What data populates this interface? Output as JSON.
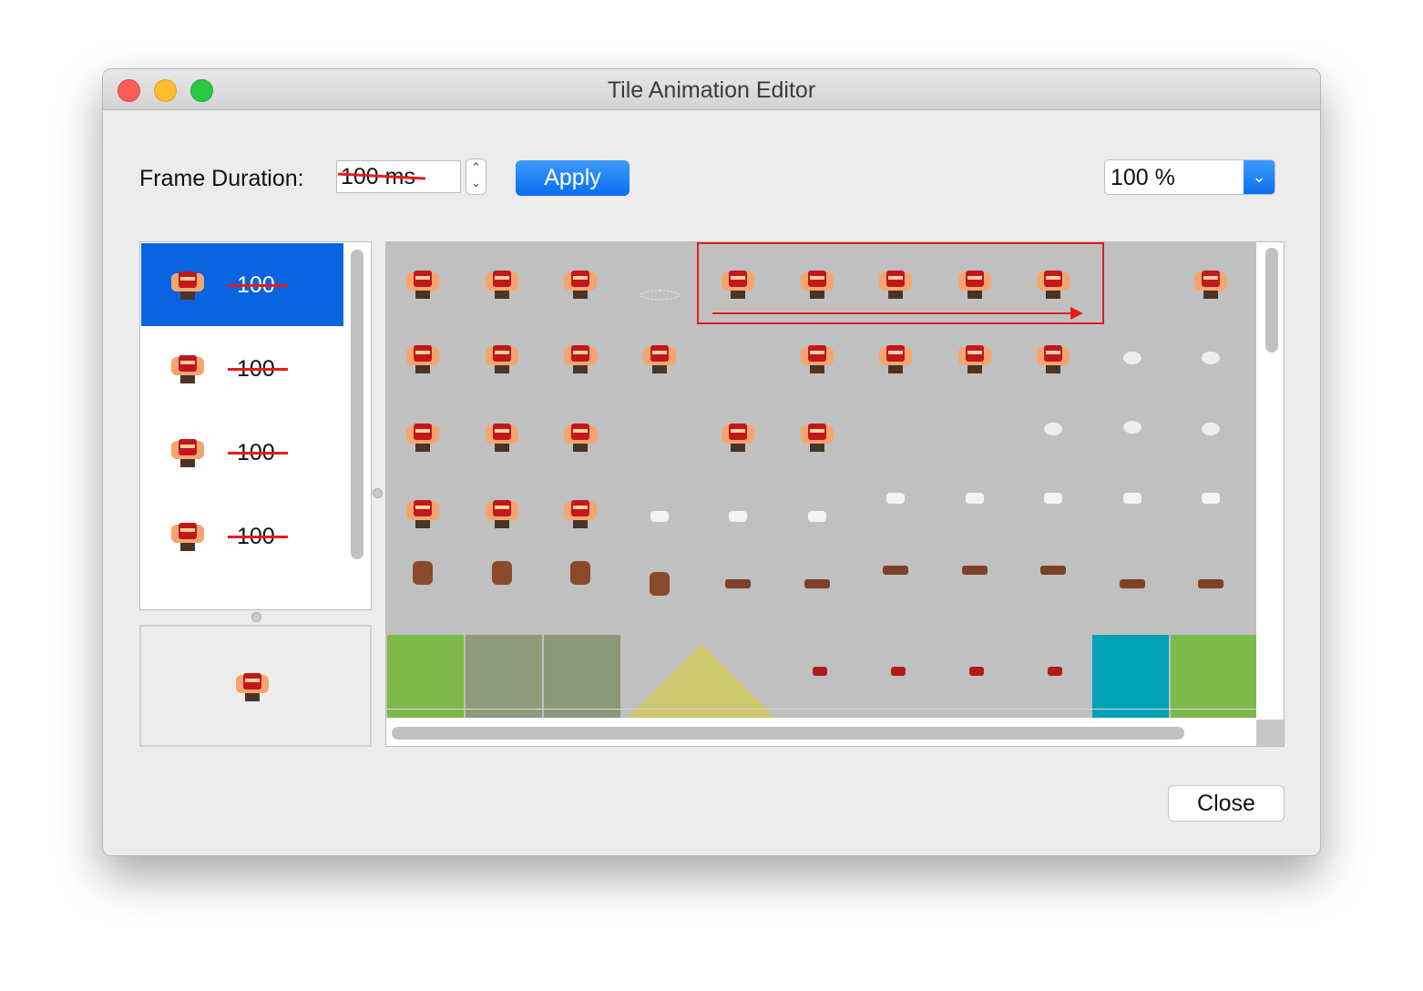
{
  "window": {
    "title": "Tile Animation Editor"
  },
  "toolbar": {
    "frame_duration_label": "Frame Duration:",
    "frame_duration_value": "100 ms",
    "apply_button": "Apply",
    "zoom": "100 %"
  },
  "frames": [
    {
      "duration": "100"
    },
    {
      "duration": "100"
    },
    {
      "duration": "100"
    },
    {
      "duration": "100"
    }
  ],
  "close_button": "Close"
}
